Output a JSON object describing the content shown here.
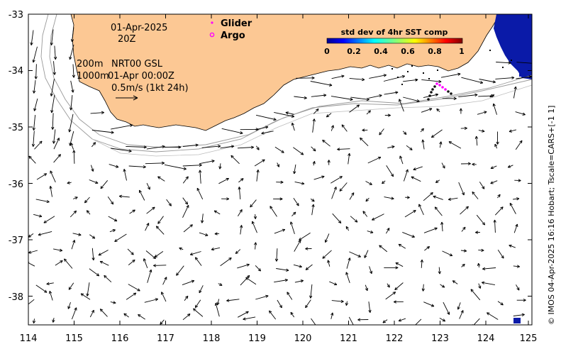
{
  "map": {
    "date_label": "01-Apr-2025",
    "time_label": "20Z",
    "depth_label_1": "200m",
    "depth_label_2": "1000m",
    "product_label": "NRT00 GSL",
    "product_time": "01-Apr 00:00Z",
    "scale_label": "0.5m/s (1kt 24h)",
    "x_ticks": [
      "114",
      "115",
      "116",
      "117",
      "118",
      "119",
      "120",
      "121",
      "122",
      "123",
      "124",
      "125"
    ],
    "y_ticks": [
      "-33",
      "-34",
      "-35",
      "-36",
      "-37",
      "-38"
    ],
    "xlim": [
      114,
      125
    ],
    "ylim": [
      -38.5,
      -33
    ]
  },
  "legend": {
    "glider_label": "Glider",
    "argo_label": "Argo",
    "glider_color": "#ff00ff",
    "argo_color": "#ff00ff"
  },
  "colorbar": {
    "title": "std dev of 4hr SST comp",
    "ticks": [
      "0",
      "0.2",
      "0.4",
      "0.6",
      "0.8",
      "1"
    ]
  },
  "credit": "© IMOS 04-Apr-2025 16:16 Hobart; Tscale=CARS+[-1 1]",
  "colors": {
    "land": "#fcc894",
    "frame": "#000000"
  }
}
